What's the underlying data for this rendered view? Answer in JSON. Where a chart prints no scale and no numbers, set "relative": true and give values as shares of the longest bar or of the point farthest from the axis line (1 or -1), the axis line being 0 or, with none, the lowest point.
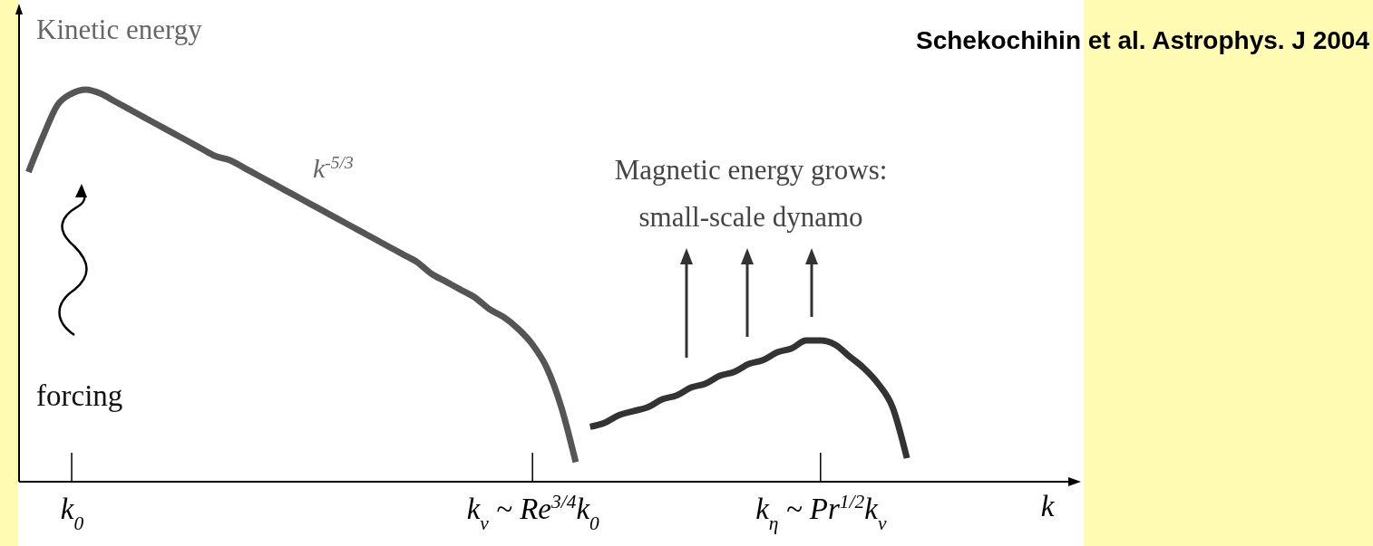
{
  "chart_data": {
    "type": "line",
    "relative": true,
    "legend": false,
    "grid": false,
    "marker": "none",
    "line_style": "solid",
    "xlabel": "k",
    "categories": [
      null,
      null,
      null,
      "k$_{0}$",
      null,
      null,
      null,
      null,
      null,
      null,
      null,
      null,
      null,
      null,
      null,
      null,
      null,
      null,
      null,
      null,
      null,
      null,
      null,
      null,
      null,
      null,
      null,
      null,
      null,
      null,
      null,
      null,
      null,
      null,
      null,
      "k$_{ν}$ ~ Re$^{3/4}$k$_{0}$",
      null,
      null,
      null,
      null,
      null,
      null,
      null,
      null,
      null,
      null,
      null,
      null,
      null,
      null,
      null,
      null,
      null,
      null,
      null,
      "k$_{η}$ ~ Pr$^{1/2}$k$_{ν}$",
      null,
      null,
      null,
      null,
      null,
      null,
      null,
      null,
      null,
      null,
      null,
      null,
      null,
      null,
      null,
      null,
      null,
      null
    ],
    "series": [
      {
        "color": "#555555",
        "values": [
          0.79,
          0.88,
          0.96,
          0.99,
          1.0,
          0.99,
          0.97,
          0.95,
          0.93,
          0.91,
          0.89,
          0.87,
          0.85,
          0.83,
          0.82,
          0.8,
          0.78,
          0.76,
          0.74,
          0.72,
          0.7,
          0.68,
          0.66,
          0.64,
          0.62,
          0.6,
          0.58,
          0.56,
          0.53,
          0.51,
          0.49,
          0.47,
          0.44,
          0.42,
          0.39,
          0.35,
          0.29,
          0.19,
          0.05,
          null,
          null,
          null,
          null,
          null,
          null,
          null,
          null,
          null,
          null,
          null,
          null,
          null,
          null,
          null,
          null,
          null,
          null,
          null,
          null,
          null,
          null,
          null,
          null,
          null,
          null,
          null,
          null,
          null,
          null,
          null,
          null,
          null,
          null,
          null
        ]
      },
      {
        "color": "#333333",
        "values": [
          null,
          null,
          null,
          null,
          null,
          null,
          null,
          null,
          null,
          null,
          null,
          null,
          null,
          null,
          null,
          null,
          null,
          null,
          null,
          null,
          null,
          null,
          null,
          null,
          null,
          null,
          null,
          null,
          null,
          null,
          null,
          null,
          null,
          null,
          null,
          null,
          null,
          null,
          null,
          0.14,
          0.15,
          0.17,
          0.18,
          0.19,
          0.21,
          0.22,
          0.24,
          0.25,
          0.27,
          0.28,
          0.3,
          0.31,
          0.33,
          0.34,
          0.36,
          0.36,
          0.35,
          0.32,
          0.29,
          0.25,
          0.19,
          0.06,
          null,
          null,
          null,
          null,
          null,
          null,
          null,
          null,
          null,
          null,
          null,
          null
        ]
      }
    ],
    "annotations": [
      "Kinetic energy",
      "k$^{-5/3}$",
      "Magnetic energy grows:",
      "small-scale dynamo",
      "forcing",
      "Schekochihin et al. Astrophys. J 2004"
    ]
  }
}
